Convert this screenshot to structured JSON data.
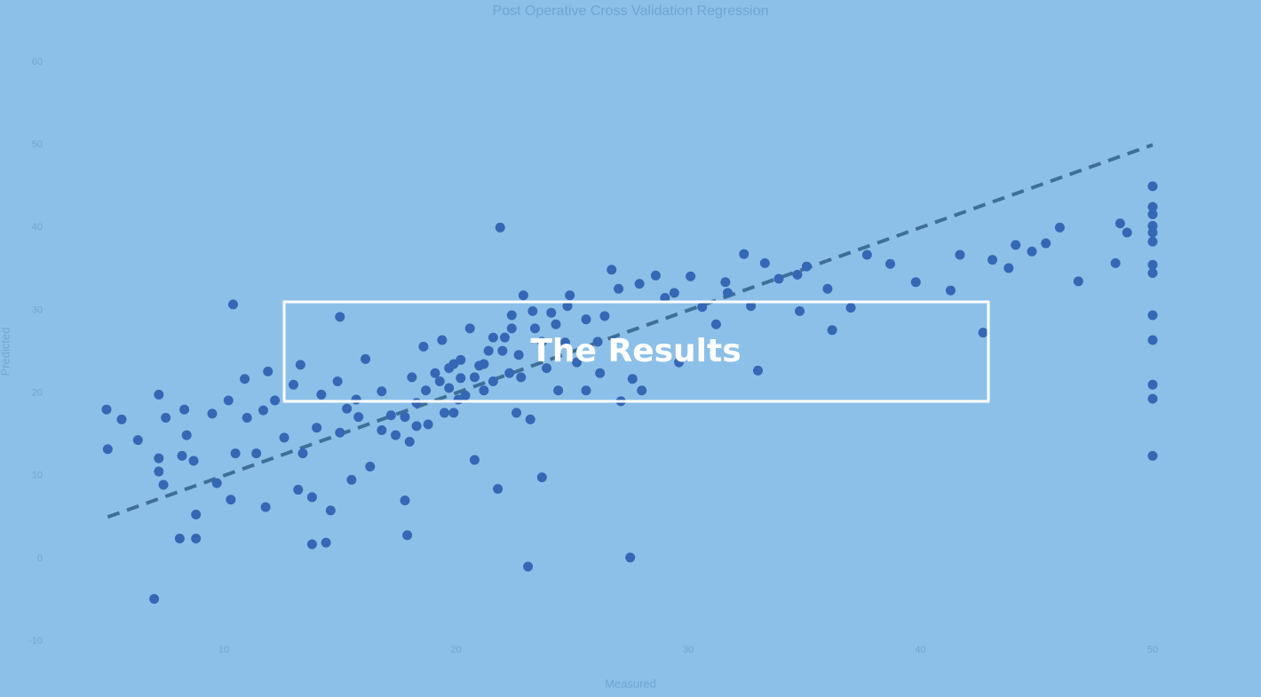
{
  "overlay": {
    "title": "The Results"
  },
  "chart_data": {
    "type": "scatter",
    "title": "Post Operative Cross Validation Regression",
    "x_label": "Measured",
    "y_label": "Predicted",
    "color": "#3567b5",
    "grid": false,
    "xlim": [
      1,
      54
    ],
    "ylim": [
      -10,
      60
    ],
    "xticks": [
      10,
      20,
      30,
      40,
      50
    ],
    "yticks": [
      -10,
      0,
      10,
      20,
      30,
      40,
      50,
      60
    ],
    "reference_line": {
      "x": [
        5,
        50
      ],
      "values": [
        5,
        50
      ],
      "color": "#3f6f98",
      "dashed": true
    },
    "x": [
      4.95,
      5.0,
      5.6,
      6.3,
      7.0,
      7.2,
      7.2,
      7.2,
      7.4,
      7.5,
      8.1,
      8.2,
      8.3,
      8.4,
      8.8,
      8.8,
      8.7,
      9.5,
      9.7,
      10.2,
      10.3,
      10.4,
      10.5,
      10.9,
      11.0,
      11.4,
      11.7,
      11.8,
      11.9,
      12.2,
      12.6,
      13.0,
      13.2,
      13.3,
      13.4,
      13.8,
      13.8,
      14.0,
      14.2,
      14.4,
      14.6,
      15.0,
      15.0,
      15.3,
      15.5,
      15.8,
      16.1,
      16.3,
      16.8,
      17.2,
      17.8,
      17.9,
      18.0,
      18.1,
      18.3,
      18.6,
      18.8,
      19.1,
      19.4,
      19.5,
      19.7,
      19.9,
      20.1,
      20.2,
      20.6,
      20.8,
      21.0,
      21.2,
      21.4,
      21.6,
      21.8,
      21.9,
      22.1,
      22.3,
      22.4,
      22.6,
      22.7,
      22.9,
      23.1,
      23.2,
      23.4,
      23.7,
      23.9,
      24.1,
      24.4,
      24.7,
      24.9,
      25.2,
      25.6,
      26.1,
      26.4,
      26.7,
      27.0,
      27.1,
      27.5,
      27.6,
      28.0,
      28.6,
      29.0,
      29.6,
      30.1,
      30.6,
      31.2,
      31.6,
      32.4,
      33.0,
      33.3,
      33.9,
      34.7,
      35.1,
      36.2,
      37.0,
      37.7,
      38.7,
      39.8,
      41.3,
      41.7,
      42.7,
      43.1,
      43.8,
      44.1,
      44.8,
      45.4,
      46.0,
      46.8,
      48.4,
      48.6,
      48.9,
      50,
      50,
      50,
      50,
      50,
      50,
      50,
      50,
      50,
      50,
      50,
      50,
      50,
      18.7,
      19.3,
      19.7,
      20.2,
      20.8,
      21.2,
      21.6,
      22.0,
      22.4,
      22.8,
      23.3,
      23.7,
      24.3,
      24.8,
      17.8,
      17.4,
      18.3,
      15.7,
      14.9,
      16.8,
      19.9,
      20.4,
      31.7,
      29.4,
      32.7,
      34.8,
      36.0,
      27.9,
      26.2,
      25.6
    ],
    "values": [
      18.0,
      13.2,
      16.8,
      14.3,
      -4.9,
      19.8,
      12.1,
      10.5,
      8.9,
      17.0,
      2.4,
      12.4,
      18.0,
      14.9,
      5.3,
      2.4,
      11.8,
      17.5,
      9.1,
      19.1,
      7.1,
      30.7,
      12.7,
      21.7,
      17.0,
      12.7,
      17.9,
      6.2,
      22.6,
      19.1,
      14.6,
      21.0,
      8.3,
      23.4,
      12.7,
      1.7,
      7.4,
      15.8,
      19.8,
      1.9,
      5.8,
      29.2,
      15.2,
      18.1,
      9.5,
      17.1,
      24.1,
      11.1,
      20.2,
      17.3,
      7.0,
      2.8,
      14.1,
      21.9,
      18.8,
      25.6,
      16.2,
      22.4,
      26.4,
      17.6,
      20.6,
      23.5,
      19.2,
      21.8,
      27.8,
      11.9,
      23.3,
      20.3,
      25.1,
      21.4,
      8.4,
      40.0,
      26.7,
      22.4,
      29.4,
      17.6,
      24.6,
      31.8,
      -1.0,
      16.8,
      27.8,
      9.8,
      23.0,
      29.7,
      20.3,
      26.1,
      31.8,
      23.7,
      28.9,
      26.2,
      29.3,
      34.9,
      32.6,
      19.0,
      0.1,
      21.7,
      20.3,
      34.2,
      31.5,
      23.7,
      34.1,
      30.4,
      28.3,
      33.4,
      36.8,
      22.7,
      35.7,
      33.8,
      34.3,
      35.3,
      27.6,
      30.3,
      36.7,
      35.6,
      33.4,
      32.4,
      36.7,
      27.3,
      36.1,
      35.1,
      37.9,
      37.1,
      38.1,
      40.0,
      33.5,
      35.7,
      40.5,
      39.4,
      45.0,
      42.5,
      41.6,
      40.2,
      39.4,
      38.3,
      35.5,
      34.5,
      29.4,
      26.4,
      21.0,
      19.3,
      12.4,
      20.3,
      21.4,
      23.0,
      24.0,
      21.9,
      23.5,
      26.7,
      25.1,
      27.8,
      21.9,
      29.9,
      26.2,
      28.3,
      30.5,
      17.1,
      14.9,
      16.0,
      19.2,
      21.4,
      15.5,
      17.6,
      19.7,
      32.1,
      32.1,
      30.5,
      29.9,
      32.6,
      33.2,
      22.4,
      20.3
    ]
  }
}
